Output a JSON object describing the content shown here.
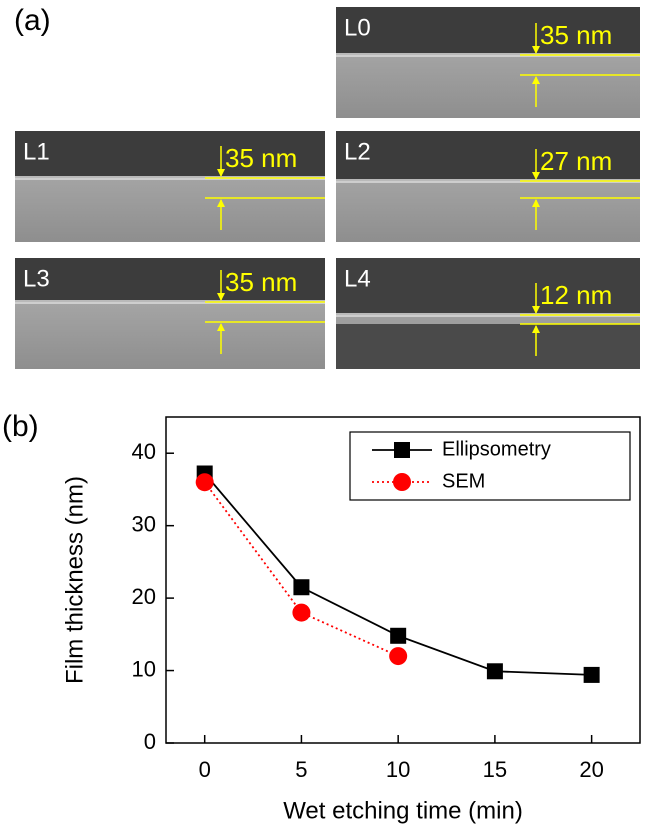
{
  "panel_a": {
    "label": "(a)",
    "images": [
      {
        "label": "L0",
        "measurement": "35 nm"
      },
      {
        "label": "L1",
        "measurement": "35 nm"
      },
      {
        "label": "L2",
        "measurement": "27 nm"
      },
      {
        "label": "L3",
        "measurement": "35 nm"
      },
      {
        "label": "L4",
        "measurement": "12 nm"
      }
    ]
  },
  "chart_data": {
    "type": "line",
    "panel_label": "(b)",
    "x_label": "Wet etching time (min)",
    "y_label": "Film thickness (nm)",
    "x": [
      0,
      5,
      10,
      15,
      20
    ],
    "series": [
      {
        "name": "Ellipsometry",
        "color": "#000000",
        "marker": "square",
        "line_style": "solid",
        "values": [
          37.2,
          21.5,
          14.8,
          9.9,
          9.4
        ]
      },
      {
        "name": "SEM",
        "color": "#ff0000",
        "marker": "circle",
        "line_style": "dotted",
        "values": [
          36,
          18,
          12,
          null,
          null
        ]
      }
    ],
    "xlim": [
      -2,
      22.5
    ],
    "xticks": [
      0,
      5,
      10,
      15,
      20
    ],
    "ylim": [
      0,
      45
    ],
    "yticks": [
      0,
      10,
      20,
      30,
      40
    ],
    "grid": false,
    "legend": "upper right"
  }
}
